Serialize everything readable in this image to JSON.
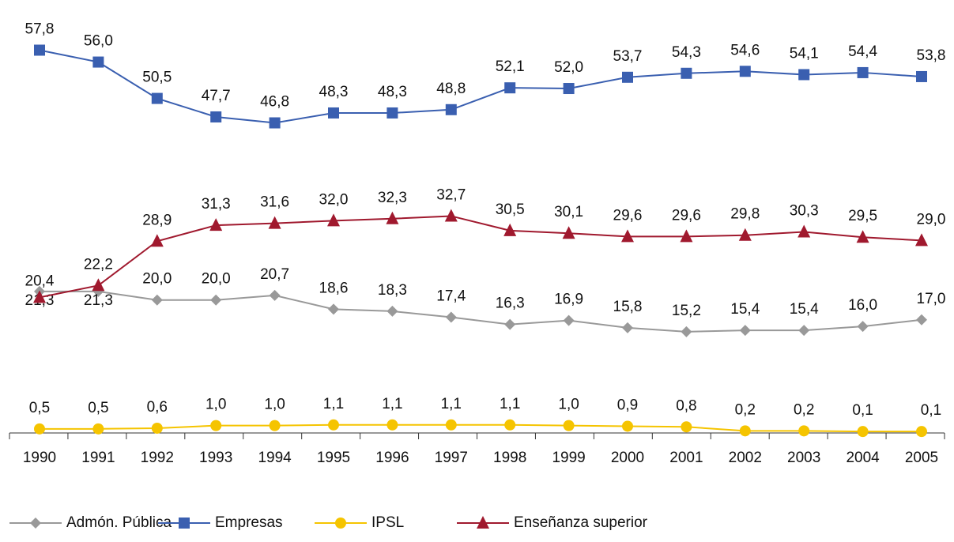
{
  "chart_data": {
    "type": "line",
    "categories": [
      "1990",
      "1991",
      "1992",
      "1993",
      "1994",
      "1995",
      "1996",
      "1997",
      "1998",
      "1999",
      "2000",
      "2001",
      "2002",
      "2003",
      "2004",
      "2005"
    ],
    "ylim": [
      0,
      63
    ],
    "series": [
      {
        "name": "Admón. Pública",
        "color": "#999999",
        "marker": "diamond",
        "values": [
          21.3,
          21.3,
          20.0,
          20.0,
          20.7,
          18.6,
          18.3,
          17.4,
          16.3,
          16.9,
          15.8,
          15.2,
          15.4,
          15.4,
          16.0,
          17.0
        ],
        "value_labels": [
          "21,3",
          "21,3",
          "20,0",
          "20,0",
          "20,7",
          "18,6",
          "18,3",
          "17,4",
          "16,3",
          "16,9",
          "15,8",
          "15,2",
          "15,4",
          "15,4",
          "16,0",
          "17,0"
        ]
      },
      {
        "name": "Empresas",
        "color": "#3a5fb0",
        "marker": "square",
        "values": [
          57.8,
          56.0,
          50.5,
          47.7,
          46.8,
          48.3,
          48.3,
          48.8,
          52.1,
          52.0,
          53.7,
          54.3,
          54.6,
          54.1,
          54.4,
          53.8
        ],
        "value_labels": [
          "57,8",
          "56,0",
          "50,5",
          "47,7",
          "46,8",
          "48,3",
          "48,3",
          "48,8",
          "52,1",
          "52,0",
          "53,7",
          "54,3",
          "54,6",
          "54,1",
          "54,4",
          "53,8"
        ]
      },
      {
        "name": "IPSL",
        "color": "#f5c400",
        "marker": "circle",
        "values": [
          0.5,
          0.5,
          0.6,
          1.0,
          1.0,
          1.1,
          1.1,
          1.1,
          1.1,
          1.0,
          0.9,
          0.8,
          0.2,
          0.2,
          0.1,
          0.1
        ],
        "value_labels": [
          "0,5",
          "0,5",
          "0,6",
          "1,0",
          "1,0",
          "1,1",
          "1,1",
          "1,1",
          "1,1",
          "1,0",
          "0,9",
          "0,8",
          "0,2",
          "0,2",
          "0,1",
          "0,1"
        ]
      },
      {
        "name": "Enseñanza superior",
        "color": "#a0192e",
        "marker": "triangle",
        "values": [
          20.4,
          22.2,
          28.9,
          31.3,
          31.6,
          32.0,
          32.3,
          32.7,
          30.5,
          30.1,
          29.6,
          29.6,
          29.8,
          30.3,
          29.5,
          29.0
        ],
        "value_labels": [
          "20,4",
          "22,2",
          "28,9",
          "31,3",
          "31,6",
          "32,0",
          "32,3",
          "32,7",
          "30,5",
          "30,1",
          "29,6",
          "29,6",
          "29,8",
          "30,3",
          "29,5",
          "29,0"
        ]
      }
    ],
    "legend": "bottom"
  }
}
